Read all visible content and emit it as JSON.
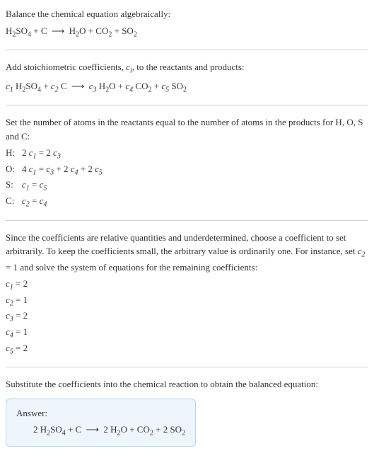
{
  "intro": {
    "line1": "Balance the chemical equation algebraically:"
  },
  "reaction_unbalanced": {
    "lhs": [
      {
        "formula": "H₂SO₄"
      },
      {
        "formula": "C"
      }
    ],
    "rhs": [
      {
        "formula": "H₂O"
      },
      {
        "formula": "CO₂"
      },
      {
        "formula": "SO₂"
      }
    ]
  },
  "stoich": {
    "line1_a": "Add stoichiometric coefficients, ",
    "line1_b": ", to the reactants and products:"
  },
  "reaction_symbolic": {
    "lhs": [
      {
        "coeff": "c₁",
        "formula": "H₂SO₄"
      },
      {
        "coeff": "c₂",
        "formula": "C"
      }
    ],
    "rhs": [
      {
        "coeff": "c₃",
        "formula": "H₂O"
      },
      {
        "coeff": "c₄",
        "formula": "CO₂"
      },
      {
        "coeff": "c₅",
        "formula": "SO₂"
      }
    ]
  },
  "atoms": {
    "intro": "Set the number of atoms in the reactants equal to the number of atoms in the products for H, O, S and C:",
    "rows": [
      {
        "element": "H:",
        "lhs": "2 c₁",
        "rhs": "2 c₃"
      },
      {
        "element": "O:",
        "lhs": "4 c₁",
        "rhs": "c₃ + 2 c₄ + 2 c₅"
      },
      {
        "element": "S:",
        "lhs": "c₁",
        "rhs": "c₅"
      },
      {
        "element": "C:",
        "lhs": "c₂",
        "rhs": "c₄"
      }
    ]
  },
  "solve": {
    "intro_a": "Since the coefficients are relative quantities and underdetermined, choose a coefficient to set arbitrarily. To keep the coefficients small, the arbitrary value is ordinarily one. For instance, set ",
    "intro_b": " and solve the system of equations for the remaining coefficients:",
    "set_var": "c₂ = 1",
    "results": [
      "c₁ = 2",
      "c₂ = 1",
      "c₃ = 2",
      "c₄ = 1",
      "c₅ = 2"
    ]
  },
  "substitute": {
    "intro": "Substitute the coefficients into the chemical reaction to obtain the balanced equation:"
  },
  "answer": {
    "label": "Answer:",
    "lhs": [
      {
        "coeff": "2",
        "formula": "H₂SO₄"
      },
      {
        "coeff": "",
        "formula": "C"
      }
    ],
    "rhs": [
      {
        "coeff": "2",
        "formula": "H₂O"
      },
      {
        "coeff": "",
        "formula": "CO₂"
      },
      {
        "coeff": "2",
        "formula": "SO₂"
      }
    ]
  },
  "style": {
    "text_color": "#333333",
    "divider_color": "#d0d0d0",
    "answer_bg": "#eef6fc",
    "answer_border": "#b8d4e8",
    "font_body": 13,
    "font_sub": 10
  }
}
